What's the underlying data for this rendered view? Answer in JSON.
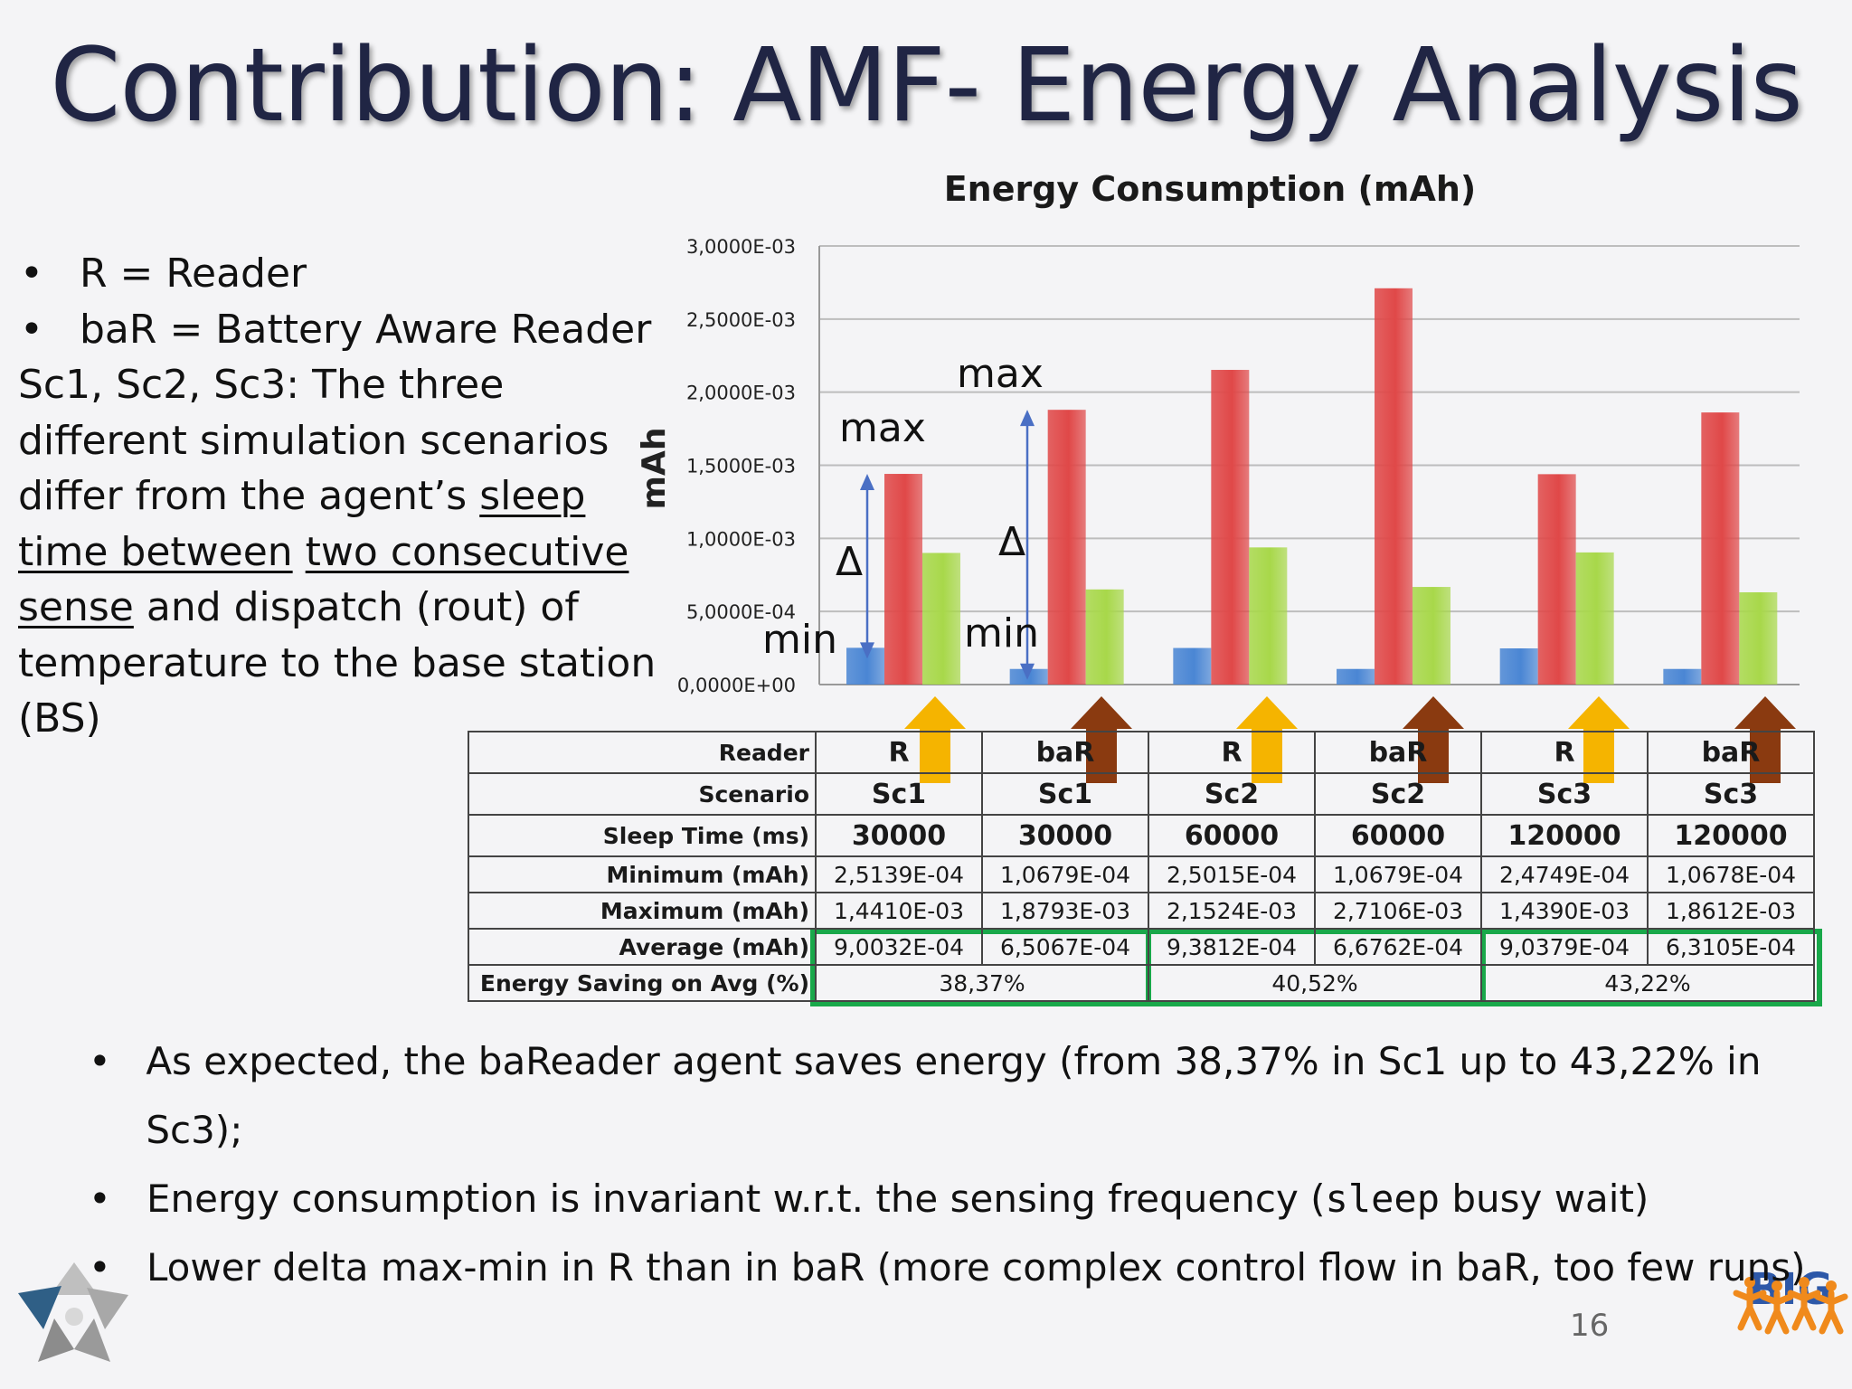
{
  "title": "Contribution: AMF- Energy Analysis",
  "notes": {
    "bullet": "•",
    "item1": "R = Reader",
    "item2": "baR = Battery Aware Reader",
    "para_a": "Sc1, Sc2, Sc3: The three different simulation scenarios differ from the agent’s ",
    "para_u1": "sleep time between",
    "para_u2": "two consecutive sense",
    "para_b": " and dispatch (rout) of temperature to the base station (BS)"
  },
  "chart_data": {
    "type": "bar",
    "title": "Energy Consumption (mAh)",
    "ylabel": "mAh",
    "xlabel": "",
    "ylim": [
      0,
      0.003
    ],
    "yticks": [
      "3,0000E-03",
      "2,5000E-03",
      "2,0000E-03",
      "1,5000E-03",
      "1,0000E-03",
      "5,0000E-04",
      "0,0000E+00"
    ],
    "grid": true,
    "categories": [
      "R Sc1",
      "baR Sc1",
      "R Sc2",
      "baR Sc2",
      "R Sc3",
      "baR Sc3"
    ],
    "series": [
      {
        "values": [
          0.00025139,
          0.00010679,
          0.00025015,
          0.00010679,
          0.00024749,
          0.00010678
        ],
        "color": "#4a86d4"
      },
      {
        "values": [
          0.001441,
          0.0018793,
          0.0021524,
          0.0027106,
          0.001439,
          0.0018612
        ],
        "color": "#e04848"
      },
      {
        "values": [
          0.00090032,
          0.00065067,
          0.00093812,
          0.00066762,
          0.00090379,
          0.00063105
        ],
        "color": "#a8d84a"
      }
    ],
    "annotations": {
      "max": "max",
      "min": "min",
      "delta": "Δ"
    }
  },
  "arrow_colors": {
    "reader": "#f5b400",
    "bar": "#8a3a10"
  },
  "table": {
    "row_labels": [
      "Reader",
      "Scenario",
      "Sleep Time (ms)",
      "Minimum (mAh)",
      "Maximum (mAh)",
      "Average (mAh)",
      "Energy Saving on Avg (%)"
    ],
    "reader": [
      "R",
      "baR",
      "R",
      "baR",
      "R",
      "baR"
    ],
    "scenario": [
      "Sc1",
      "Sc1",
      "Sc2",
      "Sc2",
      "Sc3",
      "Sc3"
    ],
    "sleep": [
      "30000",
      "30000",
      "60000",
      "60000",
      "120000",
      "120000"
    ],
    "minimum": [
      "2,5139E-04",
      "1,0679E-04",
      "2,5015E-04",
      "1,0679E-04",
      "2,4749E-04",
      "1,0678E-04"
    ],
    "maximum": [
      "1,4410E-03",
      "1,8793E-03",
      "2,1524E-03",
      "2,7106E-03",
      "1,4390E-03",
      "1,8612E-03"
    ],
    "average": [
      "9,0032E-04",
      "6,5067E-04",
      "9,3812E-04",
      "6,6762E-04",
      "9,0379E-04",
      "6,3105E-04"
    ],
    "saving": [
      "38,37%",
      "40,52%",
      "43,22%"
    ],
    "highlight_color": "#19a84a"
  },
  "bottom": {
    "bullet": "•",
    "b1": "As expected, the baReader agent saves energy (from 38,37% in Sc1 up to 43,22% in Sc3);",
    "b2a": "Energy consumption is invariant w.r.t. the sensing frequency (",
    "b2code": "sleep",
    "b2b": " busy wait)",
    "b3": "Lower delta max-min in R than in baR (more complex control flow in baR, too few runs)"
  },
  "logos": {
    "right_text": "BIG"
  },
  "page_number": "16"
}
